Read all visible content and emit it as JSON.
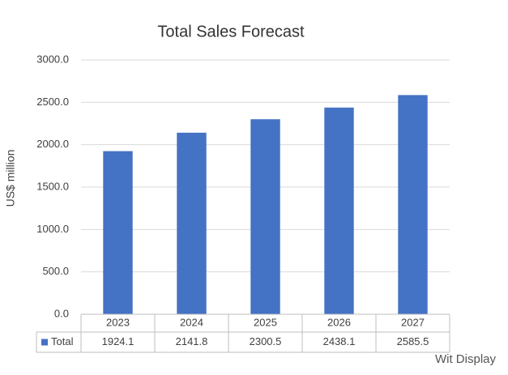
{
  "chart_data": {
    "type": "bar",
    "title": "Total Sales Forecast",
    "y_label": "US$ million",
    "categories": [
      "2023",
      "2024",
      "2025",
      "2026",
      "2027"
    ],
    "series": [
      {
        "name": "Total",
        "color": "#4472c4",
        "values": [
          1924.1,
          2141.8,
          2300.5,
          2438.1,
          2585.5
        ]
      }
    ],
    "ylim": [
      0,
      3000
    ],
    "yticks": [
      {
        "value": 0,
        "label": "0.0"
      },
      {
        "value": 500,
        "label": "500.0"
      },
      {
        "value": 1000,
        "label": "1000.0"
      },
      {
        "value": 1500,
        "label": "1500.0"
      },
      {
        "value": 2000,
        "label": "2000.0"
      },
      {
        "value": 2500,
        "label": "2500.0"
      },
      {
        "value": 3000,
        "label": "3000.0"
      }
    ],
    "grid": true,
    "data_table": true
  },
  "watermark": "Wit Display"
}
